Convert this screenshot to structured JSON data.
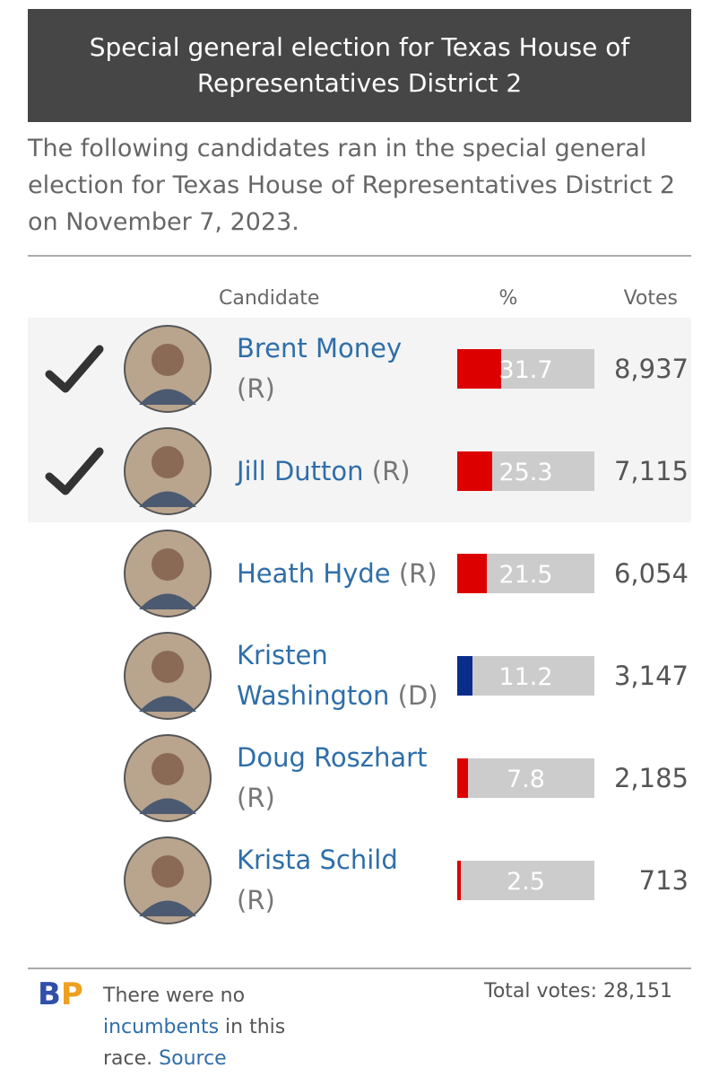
{
  "header": {
    "title": "Special general election for Texas House of Representatives District 2"
  },
  "intro": "The following candidates ran in the special general election for Texas House of Representatives District 2 on November 7, 2023.",
  "table": {
    "columns": [
      "Candidate",
      "%",
      "Votes"
    ],
    "rows": [
      {
        "name": "Brent Money",
        "party": "(R)",
        "percent": 31.7,
        "votes": "8,937",
        "winner": true,
        "color": "#dd0000"
      },
      {
        "name": "Jill Dutton",
        "party": "(R)",
        "percent": 25.3,
        "votes": "7,115",
        "winner": true,
        "color": "#dd0000"
      },
      {
        "name": "Heath Hyde",
        "party": "(R)",
        "percent": 21.5,
        "votes": "6,054",
        "winner": false,
        "color": "#dd0000"
      },
      {
        "name": "Kristen Washington",
        "party": "(D)",
        "percent": 11.2,
        "votes": "3,147",
        "winner": false,
        "color": "#0a2d8c"
      },
      {
        "name": "Doug Roszhart",
        "party": "(R)",
        "percent": 7.8,
        "votes": "2,185",
        "winner": false,
        "color": "#dd0000"
      },
      {
        "name": "Krista Schild",
        "party": "(R)",
        "percent": 2.5,
        "votes": "713",
        "winner": false,
        "color": "#dd0000"
      }
    ]
  },
  "footer": {
    "logo": [
      "B",
      "P"
    ],
    "note": [
      "There were no ",
      "incumbents",
      " in this race. ",
      "Source"
    ],
    "total": "Total votes: 28,151"
  }
}
